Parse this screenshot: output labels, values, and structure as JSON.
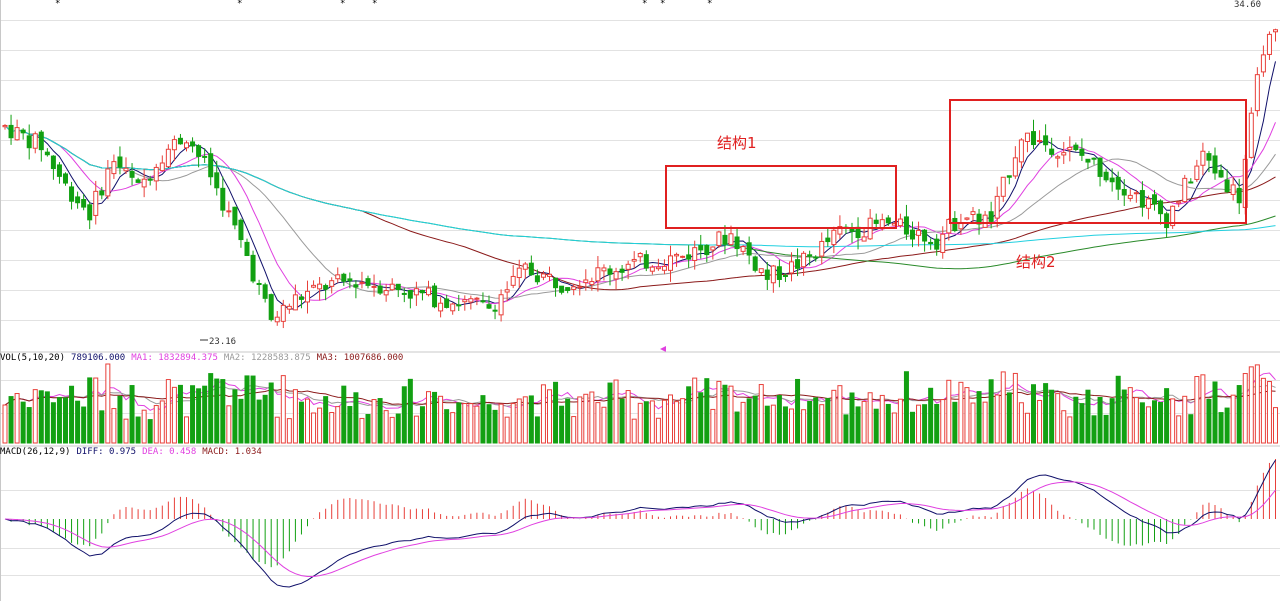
{
  "chart_data": {
    "type": "candlestick",
    "price_panel": {
      "high_label": "34.60",
      "low_label": "23.16",
      "ylim": [
        22.5,
        35.0
      ],
      "moving_averages": [
        "MA5",
        "MA10",
        "MA20",
        "MA60",
        "MA120",
        "MA250"
      ],
      "annotations": [
        {
          "label": "结构1"
        },
        {
          "label": "结构2"
        }
      ]
    },
    "volume_panel": {
      "title": "VOL(5,10,20)",
      "value": "789106.000",
      "ma1": "MA1: 1832894.375",
      "ma2": "MA2: 1228583.875",
      "ma3": "MA3: 1007686.000"
    },
    "macd_panel": {
      "title": "MACD(26,12,9)",
      "diff": "DIFF: 0.975",
      "dea": "DEA: 0.458",
      "macd": "MACD: 1.034"
    },
    "colors": {
      "up": "#e8403a",
      "down": "#12a012",
      "ma_short": "#10106a",
      "ma_mid": "#e040e0",
      "ma_long_1": "#9a9a9a",
      "ma_long_2": "#8b1a1a",
      "ma_long_3": "#2a8a2a",
      "ma_long_4": "#22d0e0",
      "box": "#e02020",
      "grid": "#e2e2e2",
      "panel_border": "#c8c8c8"
    }
  }
}
